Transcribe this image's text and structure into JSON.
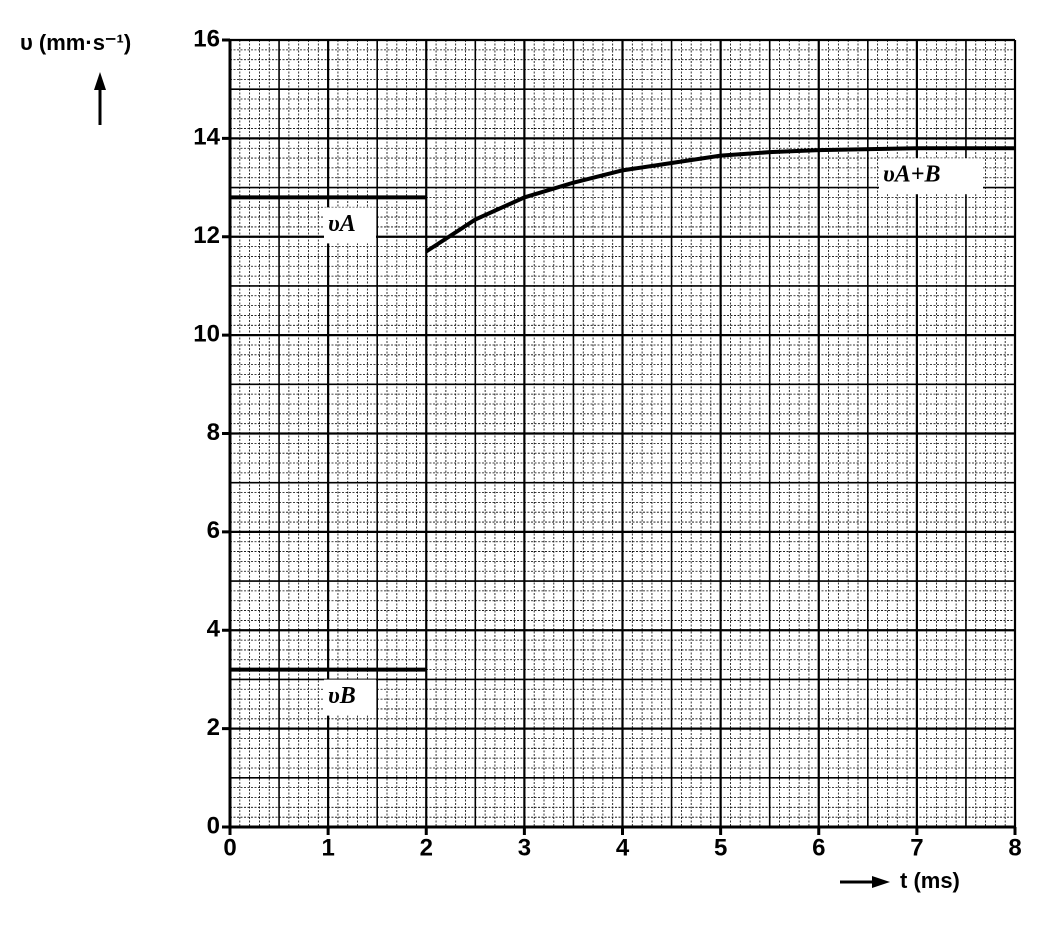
{
  "chart_data": {
    "type": "line",
    "y_label": "υ (mm·s⁻¹)",
    "x_label": "t (ms)",
    "xlim": [
      0,
      8
    ],
    "xticks": [
      0,
      1,
      2,
      3,
      4,
      5,
      6,
      7,
      8
    ],
    "ylim": [
      0,
      16
    ],
    "yticks": [
      0,
      2,
      4,
      6,
      8,
      10,
      12,
      14,
      16
    ],
    "grid": true,
    "series": [
      {
        "name": "υA",
        "color": "#000000",
        "x": [
          0,
          2
        ],
        "values": [
          12.8,
          12.8
        ]
      },
      {
        "name": "υB",
        "color": "#000000",
        "x": [
          0,
          2
        ],
        "values": [
          3.2,
          3.2
        ]
      },
      {
        "name": "υA+B",
        "color": "#000000",
        "x": [
          2,
          2.5,
          3,
          3.5,
          4,
          4.5,
          5,
          5.5,
          6,
          7,
          8
        ],
        "values": [
          11.7,
          12.35,
          12.8,
          13.1,
          13.35,
          13.5,
          13.65,
          13.72,
          13.76,
          13.8,
          13.8
        ]
      }
    ]
  }
}
